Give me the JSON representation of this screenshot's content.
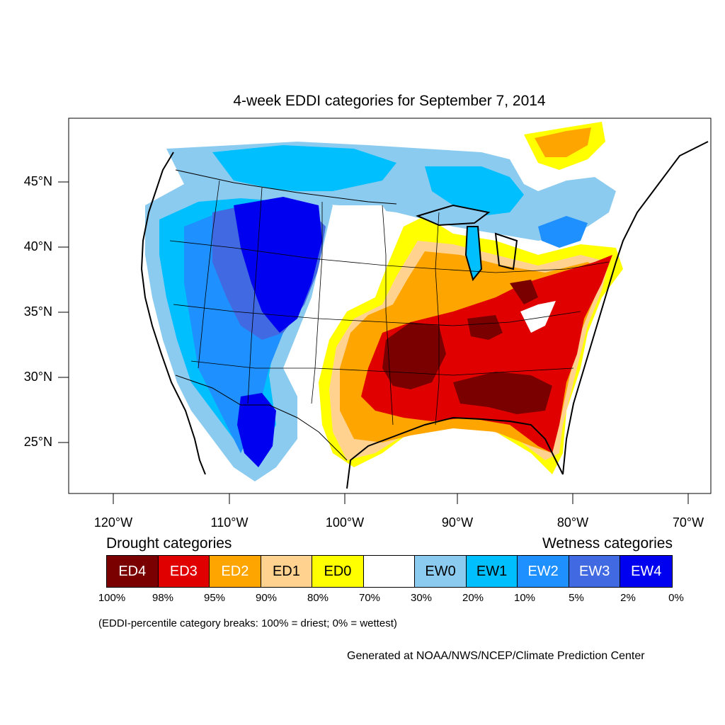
{
  "title": "4-week EDDI categories for September 7, 2014",
  "lat_labels": [
    "45°N",
    "40°N",
    "35°N",
    "30°N",
    "25°N"
  ],
  "lon_labels": [
    "120°W",
    "110°W",
    "100°W",
    "90°W",
    "80°W",
    "70°W"
  ],
  "legend": {
    "drought_heading": "Drought categories",
    "wetness_heading": "Wetness categories",
    "drought": [
      {
        "label": "ED4",
        "color": "#7a0000",
        "text_color": "#ffffff"
      },
      {
        "label": "ED3",
        "color": "#e00000",
        "text_color": "#ffffff"
      },
      {
        "label": "ED2",
        "color": "#ffa500",
        "text_color": "#ffffff"
      },
      {
        "label": "ED1",
        "color": "#ffd290",
        "text_color": "#000000"
      },
      {
        "label": "ED0",
        "color": "#ffff00",
        "text_color": "#000000"
      }
    ],
    "neutral_color": "#ffffff",
    "wetness": [
      {
        "label": "EW0",
        "color": "#8ccbf0",
        "text_color": "#000000"
      },
      {
        "label": "EW1",
        "color": "#00bfff",
        "text_color": "#000000"
      },
      {
        "label": "EW2",
        "color": "#1e90ff",
        "text_color": "#ffffff"
      },
      {
        "label": "EW3",
        "color": "#4169e1",
        "text_color": "#ffffff"
      },
      {
        "label": "EW4",
        "color": "#0000f0",
        "text_color": "#ffffff"
      }
    ],
    "percentiles": [
      "100%",
      "98%",
      "95%",
      "90%",
      "80%",
      "70%",
      "30%",
      "20%",
      "10%",
      "5%",
      "2%",
      "0%"
    ]
  },
  "note": "(EDDI-percentile category breaks: 100% = driest; 0% = wettest)",
  "credit": "Generated at NOAA/NWS/NCEP/Climate Prediction Center"
}
